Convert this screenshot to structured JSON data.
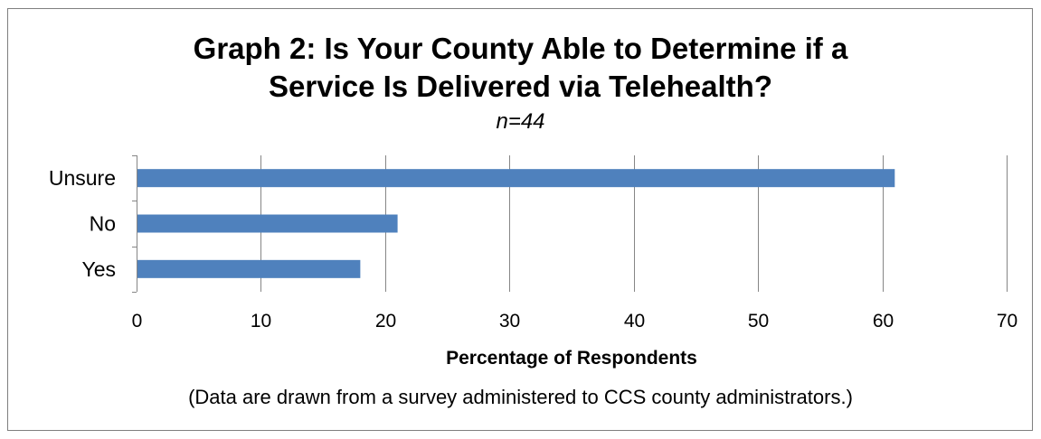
{
  "chart_data": {
    "type": "bar",
    "orientation": "horizontal",
    "title": "Graph 2: Is Your County Able to Determine if a Service Is Delivered via Telehealth?",
    "title_lines": [
      "Graph 2: Is Your County Able to Determine if a",
      "Service Is Delivered via Telehealth?"
    ],
    "subtitle": "n=44",
    "categories": [
      "Unsure",
      "No",
      "Yes"
    ],
    "values": [
      61,
      21,
      18
    ],
    "xlabel": "Percentage of Respondents",
    "ylabel": "",
    "xlim": [
      0,
      70
    ],
    "xticks": [
      0,
      10,
      20,
      30,
      40,
      50,
      60,
      70
    ],
    "grid": "vertical",
    "legend": "none",
    "bar_color": "#4f81bd",
    "grid_color": "#868686",
    "axis_color": "#868686"
  },
  "footnote": "(Data are drawn from a survey administered to CCS county administrators.)"
}
